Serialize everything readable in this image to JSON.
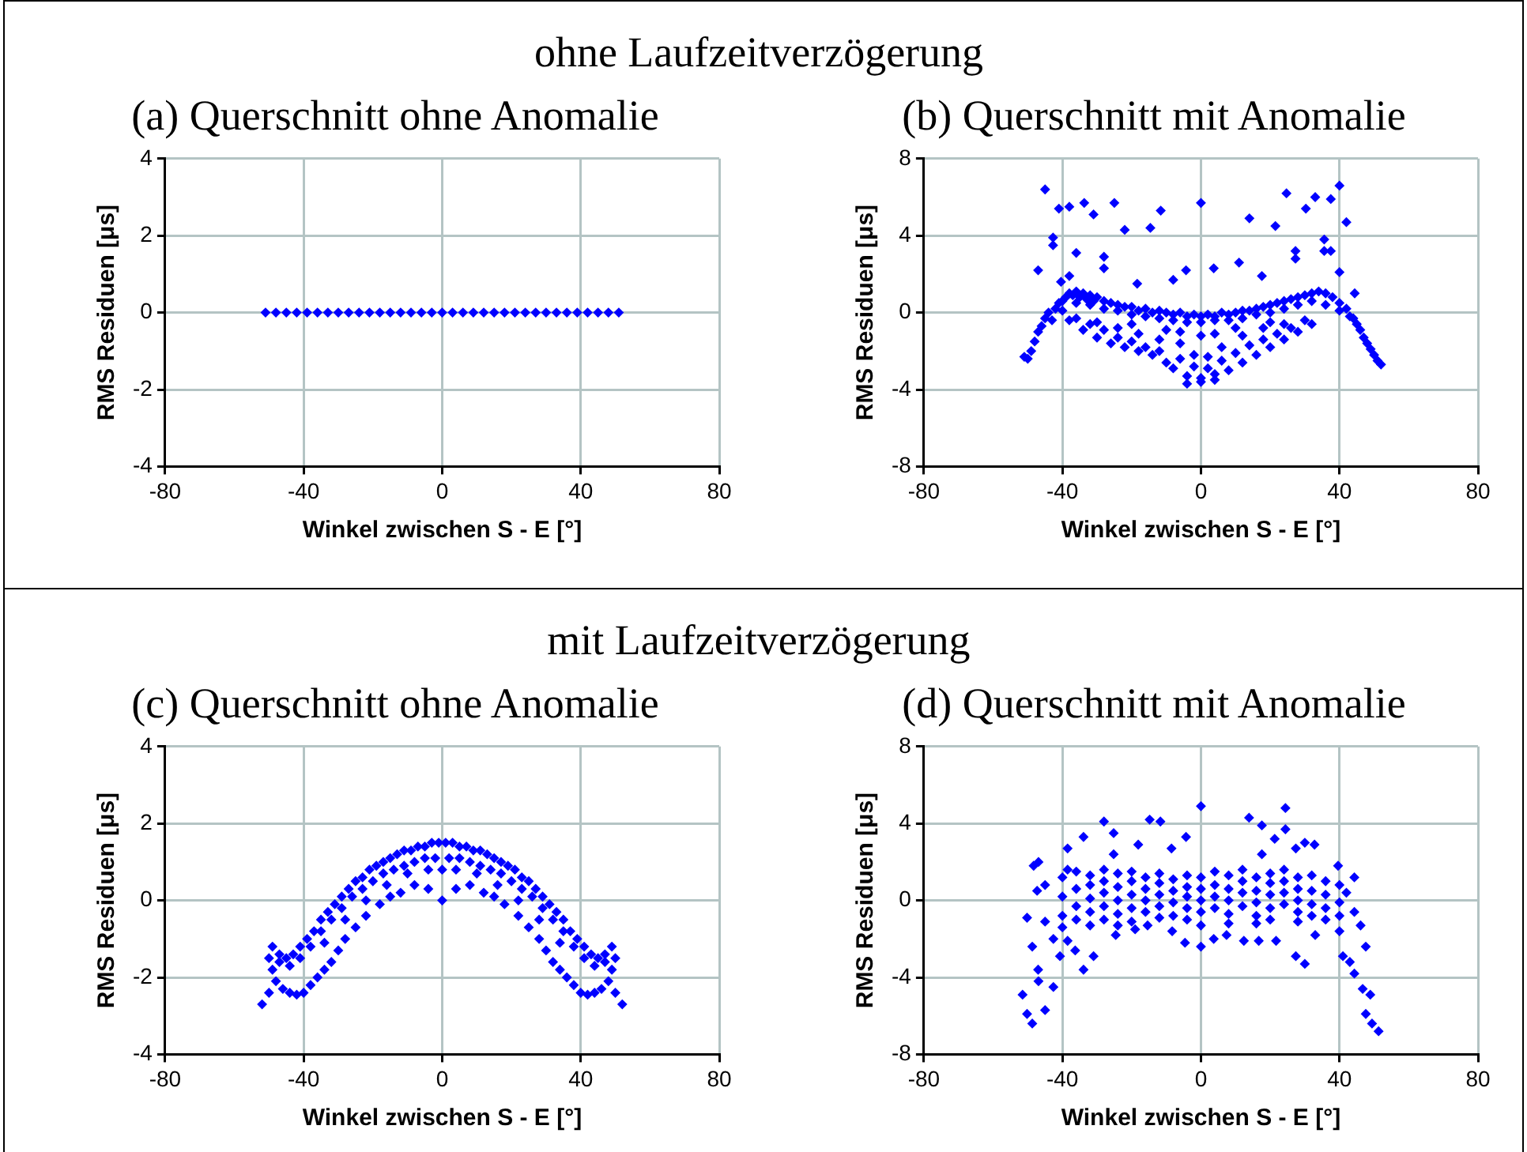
{
  "chart_data": [
    {
      "type": "scatter",
      "annotations": [
        "ohne Laufzeitverzögerung"
      ],
      "title": "(a) Querschnitt ohne Anomalie",
      "xlabel": "Winkel zwischen S - E [°]",
      "ylabel": "RMS Residuen [μs]",
      "xlim": [
        -80,
        80
      ],
      "xticks": [
        -80,
        -40,
        0,
        40,
        80
      ],
      "ylim": [
        -4,
        4
      ],
      "yticks": [
        -4,
        -2,
        0,
        2,
        4
      ],
      "grid": true,
      "marker": "diamond",
      "series": [
        {
          "color": "#0000ff",
          "x": [
            -51,
            -48,
            -45,
            -42,
            -39,
            -36,
            -33,
            -30,
            -27,
            -24,
            -21,
            -18,
            -15,
            -12,
            -9,
            -6,
            -3,
            0,
            3,
            6,
            9,
            12,
            15,
            18,
            21,
            24,
            27,
            30,
            33,
            36,
            39,
            42,
            45,
            48,
            51
          ],
          "values": [
            0,
            0,
            0,
            0,
            0,
            0,
            0,
            0,
            0,
            0,
            0,
            0,
            0,
            0,
            0,
            0,
            0,
            0,
            0,
            0,
            0,
            0,
            0,
            0,
            0,
            0,
            0,
            0,
            0,
            0,
            0,
            0,
            0,
            0,
            0
          ]
        }
      ]
    },
    {
      "type": "scatter",
      "title": "(b) Querschnitt mit Anomalie",
      "xlabel": "Winkel zwischen S - E [°]",
      "ylabel": "RMS Residuen [μs]",
      "xlim": [
        -80,
        80
      ],
      "xticks": [
        -80,
        -40,
        0,
        40,
        80
      ],
      "ylim": [
        -8,
        8
      ],
      "yticks": [
        -8,
        -4,
        0,
        4,
        8
      ],
      "grid": true,
      "marker": "diamond",
      "series": [
        {
          "color": "#0000ff",
          "x": [
            -45,
            -41,
            -38,
            -33.7,
            -31,
            -25,
            -22,
            -14.6,
            -11.6,
            0,
            14,
            21.5,
            24.7,
            30.3,
            33,
            37.5,
            40,
            42,
            -42.7,
            -42.7,
            -36,
            -28,
            -28,
            -47,
            -40.4,
            -38,
            -18.4,
            -8,
            -4.3,
            3.7,
            11,
            17.6,
            27.3,
            27.3,
            35.6,
            35.6,
            37.5,
            40,
            44.4,
            -51,
            -50,
            -49,
            -48,
            -47,
            -46,
            -45,
            -44,
            -43,
            -42,
            -41,
            -40,
            -39,
            -38,
            -37,
            -36,
            -35,
            -34,
            -33,
            -32,
            -31,
            -30,
            -28,
            -26,
            -24,
            -22,
            -20,
            -18,
            -16,
            -14,
            -12,
            -10,
            -8,
            -6,
            -4,
            -2,
            0,
            2,
            4,
            6,
            8,
            10,
            12,
            14,
            16,
            18,
            20,
            22,
            24,
            26,
            28,
            30,
            32,
            34,
            36,
            38,
            40,
            42,
            43,
            44,
            45,
            46,
            47,
            48,
            49,
            50,
            51,
            52,
            -40,
            -36,
            -32,
            -28,
            -24,
            -20,
            -16,
            -12,
            -8,
            -4,
            0,
            4,
            8,
            12,
            16,
            20,
            24,
            28,
            32,
            36,
            40,
            -38,
            -34,
            -30,
            -26,
            -22,
            -18,
            -14,
            -10,
            -8,
            -4,
            0,
            4,
            8,
            12,
            16,
            20,
            24,
            28,
            32,
            -36,
            -32,
            -28,
            -24,
            -20,
            -16,
            -12,
            -6,
            -2,
            2,
            6,
            10,
            14,
            18,
            22,
            26,
            30,
            -30,
            -24,
            -18,
            -12,
            -6,
            -2,
            2,
            6,
            12,
            18,
            24,
            -20,
            -10,
            0,
            -6,
            4,
            10,
            20,
            -4,
            0,
            4
          ],
          "values": [
            6.4,
            5.4,
            5.5,
            5.7,
            5.1,
            5.7,
            4.3,
            4.4,
            5.3,
            5.7,
            4.9,
            4.5,
            6.2,
            5.4,
            6,
            5.9,
            6.6,
            4.7,
            3.9,
            3.5,
            3.1,
            2.9,
            2.3,
            2.2,
            1.6,
            1.9,
            1.5,
            1.7,
            2.2,
            2.3,
            2.6,
            1.9,
            3.2,
            2.8,
            3.8,
            3.2,
            3.2,
            2.1,
            1,
            -2.3,
            -2.4,
            -2,
            -1.5,
            -1,
            -0.7,
            -0.3,
            0,
            -0.4,
            0.2,
            0.5,
            0.6,
            0.8,
            1,
            0.9,
            1.1,
            0.8,
            1,
            0.7,
            0.9,
            0.6,
            0.8,
            0.6,
            0.5,
            0.4,
            0.3,
            0.3,
            0.1,
            0.2,
            0,
            0.1,
            0,
            -0.1,
            0,
            -0.2,
            -0.1,
            -0.2,
            -0.1,
            -0.2,
            0,
            -0.1,
            0,
            0.1,
            0.1,
            0.2,
            0.3,
            0.4,
            0.5,
            0.6,
            0.7,
            0.8,
            0.9,
            1,
            1.1,
            1,
            0.8,
            0.5,
            0.2,
            -0.2,
            -0.3,
            -0.6,
            -0.9,
            -1.3,
            -1.6,
            -1.9,
            -2.2,
            -2.5,
            -2.7,
            0.1,
            0.5,
            0.4,
            0.2,
            0.1,
            -0.1,
            -0.2,
            -0.3,
            -0.4,
            -0.5,
            -0.5,
            -0.4,
            -0.4,
            -0.3,
            -0.1,
            0,
            0.2,
            0.4,
            0.6,
            0.4,
            0.1,
            -0.4,
            -0.9,
            -1.3,
            -1.6,
            -1.8,
            -2,
            -2.2,
            -2.6,
            -2.9,
            -3.3,
            -3.4,
            -3.2,
            -3,
            -2.6,
            -2.2,
            -1.8,
            -1.4,
            -1,
            -0.6,
            -0.3,
            -0.6,
            -0.9,
            -1.3,
            -1.5,
            -1.8,
            -2,
            -2.4,
            -2.8,
            -2.9,
            -2.5,
            -2.1,
            -1.7,
            -1.4,
            -1.1,
            -0.8,
            -0.4,
            -0.5,
            -0.8,
            -1.1,
            -1.4,
            -1.6,
            -2.2,
            -2.3,
            -1.8,
            -1.2,
            -0.8,
            -0.6,
            -0.6,
            -0.9,
            -1.2,
            -1,
            -1.1,
            -0.8,
            -0.5,
            -3.7,
            -3.6,
            -3.5
          ]
        }
      ]
    },
    {
      "type": "scatter",
      "annotations": [
        "mit Laufzeitverzögerung"
      ],
      "title": "(c) Querschnitt ohne Anomalie",
      "xlabel": "Winkel zwischen S - E [°]",
      "ylabel": "RMS Residuen [μs]",
      "xlim": [
        -80,
        80
      ],
      "xticks": [
        -80,
        -40,
        0,
        40,
        80
      ],
      "ylim": [
        -4,
        4
      ],
      "yticks": [
        -4,
        -2,
        0,
        2,
        4
      ],
      "grid": true,
      "marker": "diamond",
      "series": [
        {
          "color": "#0000ff",
          "x": [
            -49,
            -47,
            -45,
            -43,
            -41,
            -39,
            -37,
            -35,
            -33,
            -31,
            -29,
            -27,
            -25,
            -23,
            -21,
            -19,
            -17,
            -15,
            -13,
            -11,
            -9,
            -7,
            -5,
            -3,
            -1,
            1,
            3,
            5,
            7,
            9,
            11,
            13,
            15,
            17,
            19,
            21,
            23,
            25,
            27,
            29,
            31,
            33,
            35,
            37,
            39,
            41,
            43,
            45,
            47,
            49,
            -47,
            -44,
            -41,
            -38,
            -35,
            -32,
            -29,
            -26,
            -23,
            -20,
            -17,
            -14,
            -11,
            -8,
            -5,
            -2,
            2,
            5,
            8,
            11,
            14,
            17,
            20,
            23,
            26,
            29,
            32,
            35,
            38,
            41,
            44,
            47,
            -34,
            -28,
            -22,
            -16,
            -10,
            -4,
            0,
            4,
            10,
            16,
            22,
            28,
            34,
            -52,
            -50,
            -48,
            -46,
            -44,
            -42,
            -40,
            -38,
            -36,
            -34,
            -32,
            -30,
            -28,
            -25,
            -22,
            -18,
            -15,
            -12,
            -8,
            -4,
            0,
            4,
            8,
            12,
            15,
            18,
            22,
            25,
            28,
            30,
            32,
            34,
            36,
            38,
            40,
            42,
            44,
            46,
            48,
            50,
            52,
            -50,
            50,
            -49,
            49
          ],
          "values": [
            -1.2,
            -1.4,
            -1.5,
            -1.4,
            -1.2,
            -1,
            -0.8,
            -0.5,
            -0.3,
            -0.1,
            0.1,
            0.3,
            0.5,
            0.6,
            0.8,
            0.9,
            1,
            1.1,
            1.2,
            1.3,
            1.3,
            1.4,
            1.4,
            1.5,
            1.5,
            1.5,
            1.5,
            1.4,
            1.4,
            1.3,
            1.3,
            1.2,
            1.1,
            1,
            0.9,
            0.8,
            0.6,
            0.5,
            0.3,
            0.1,
            -0.1,
            -0.3,
            -0.5,
            -0.8,
            -1,
            -1.2,
            -1.4,
            -1.5,
            -1.4,
            -1.2,
            -1.6,
            -1.7,
            -1.5,
            -1.2,
            -0.8,
            -0.5,
            -0.2,
            0.1,
            0.3,
            0.5,
            0.7,
            0.8,
            0.9,
            1,
            1.1,
            1.1,
            1.1,
            1.1,
            1,
            0.9,
            0.8,
            0.7,
            0.5,
            0.3,
            0.1,
            -0.2,
            -0.5,
            -0.8,
            -1.2,
            -1.5,
            -1.7,
            -1.6,
            -1.1,
            -0.5,
            0,
            0.4,
            0.7,
            0.8,
            0.8,
            0.8,
            0.7,
            0.4,
            0,
            -0.5,
            -1.1,
            -2.7,
            -2.4,
            -2.1,
            -2.3,
            -2.4,
            -2.45,
            -2.4,
            -2.2,
            -2,
            -1.8,
            -1.6,
            -1.3,
            -1,
            -0.7,
            -0.4,
            -0.1,
            0.1,
            0.2,
            0.4,
            0.3,
            0,
            0.3,
            0.4,
            0.2,
            0.1,
            -0.1,
            -0.4,
            -0.7,
            -1,
            -1.3,
            -1.6,
            -1.8,
            -2,
            -2.2,
            -2.4,
            -2.45,
            -2.4,
            -2.3,
            -2.1,
            -2.4,
            -2.7,
            -1.5,
            -1.5,
            -1.8,
            -1.8
          ]
        }
      ]
    },
    {
      "type": "scatter",
      "title": "(d) Querschnitt mit Anomalie",
      "xlabel": "Winkel zwischen S - E [°]",
      "ylabel": "RMS Residuen [μs]",
      "xlim": [
        -80,
        80
      ],
      "xticks": [
        -80,
        -40,
        0,
        40,
        80
      ],
      "ylim": [
        -8,
        8
      ],
      "yticks": [
        -8,
        -4,
        0,
        4,
        8
      ],
      "grid": true,
      "marker": "diamond",
      "series": [
        {
          "color": "#0000ff",
          "x": [
            -51.5,
            -50.2,
            -48.7,
            -45,
            -46.9,
            -42.6,
            -47,
            -48.7,
            -50.2,
            -48.3,
            -46.9,
            -47.3,
            -45,
            -45,
            -42.6,
            -40.7,
            -38.5,
            -38.5,
            -33.9,
            -33.9,
            -31,
            -28,
            -25.2,
            -25.2,
            -18.1,
            -14.8,
            -11.7,
            -8.5,
            -4.3,
            0,
            0,
            -4.6,
            13.9,
            17.6,
            17.6,
            24.4,
            24.4,
            21.3,
            27.4,
            30,
            32.8,
            27.4,
            30,
            33,
            39.6,
            44.3,
            42,
            44.3,
            46.1,
            47.6,
            44.3,
            46.7,
            48.9,
            47.6,
            49.4,
            51.3,
            41,
            43,
            12.4,
            16.7,
            21.7,
            7.4,
            3.7,
            -8.3,
            -15.4,
            -19,
            -24.6,
            -36.3,
            -38.5,
            -40,
            -40,
            -40,
            -40,
            -36,
            -36,
            -36,
            -36,
            -32,
            -32,
            -32,
            -32,
            -32,
            -28,
            -28,
            -28,
            -28,
            -28,
            -24,
            -24,
            -24,
            -24,
            -24,
            -20,
            -20,
            -20,
            -20,
            -20,
            -16,
            -16,
            -16,
            -16,
            -12,
            -12,
            -12,
            -12,
            -12,
            -8,
            -8,
            -8,
            -8,
            -4,
            -4,
            -4,
            -4,
            -4,
            0,
            0,
            0,
            0,
            0,
            4,
            4,
            4,
            4,
            8,
            8,
            8,
            8,
            8,
            12,
            12,
            12,
            12,
            16,
            16,
            16,
            16,
            16,
            20,
            20,
            20,
            20,
            20,
            24,
            24,
            24,
            24,
            28,
            28,
            28,
            28,
            28,
            32,
            32,
            32,
            32,
            36,
            36,
            36,
            36,
            40,
            40,
            40,
            40
          ],
          "values": [
            -4.9,
            -5.9,
            -6.4,
            -5.7,
            -4.2,
            -4.5,
            -3.6,
            -2.4,
            -0.9,
            1.8,
            2,
            0.5,
            0.8,
            -1.1,
            -2,
            -2.9,
            1.6,
            2.7,
            3.3,
            -3.6,
            -2.9,
            4.1,
            3.5,
            2.4,
            2.9,
            4.2,
            4.1,
            2.7,
            3.3,
            4.9,
            -2.4,
            -2.2,
            4.3,
            3.9,
            2.4,
            4.8,
            3.7,
            3.2,
            2.7,
            3,
            2.9,
            -2.9,
            -3.3,
            -1.8,
            1.8,
            1.2,
            0.4,
            -0.6,
            -1.3,
            -2.4,
            -3.8,
            -4.6,
            -4.9,
            -5.9,
            -6.4,
            -6.8,
            -2.9,
            -3.2,
            -2.1,
            -2.1,
            -2.1,
            -1.8,
            -2,
            -1.6,
            -1.3,
            -1.5,
            -1.8,
            -2.6,
            -2.1,
            1.2,
            0.2,
            -0.8,
            -1.4,
            1.5,
            0.6,
            -0.3,
            -1,
            1.3,
            0.8,
            0.1,
            -0.6,
            -1.3,
            1.6,
            1,
            0.4,
            -0.3,
            -1,
            1.4,
            0.7,
            0,
            -0.7,
            -1.3,
            1.5,
            1,
            0.3,
            -0.4,
            -1.1,
            1.2,
            0.6,
            0,
            -0.6,
            1.4,
            0.9,
            0.3,
            -0.3,
            -0.9,
            1.1,
            0.5,
            -0.1,
            -0.8,
            1.3,
            0.7,
            0.2,
            -0.4,
            -1,
            1.2,
            0.6,
            0,
            -0.6,
            -1.3,
            1.5,
            0.8,
            0.2,
            -0.4,
            1.3,
            0.6,
            0,
            -0.7,
            -1.2,
            1.6,
            1,
            0.4,
            -0.3,
            1.2,
            0.5,
            -0.1,
            -0.8,
            -1.2,
            1.4,
            0.9,
            0.3,
            -0.4,
            -1,
            1.6,
            1,
            0.4,
            -0.2,
            1.2,
            0.6,
            0,
            -0.6,
            -1.1,
            1.3,
            0.5,
            -0.2,
            -0.8,
            1,
            0.3,
            -0.4,
            -1,
            0.8,
            -0.1,
            -0.8,
            -1.6
          ]
        }
      ]
    }
  ]
}
